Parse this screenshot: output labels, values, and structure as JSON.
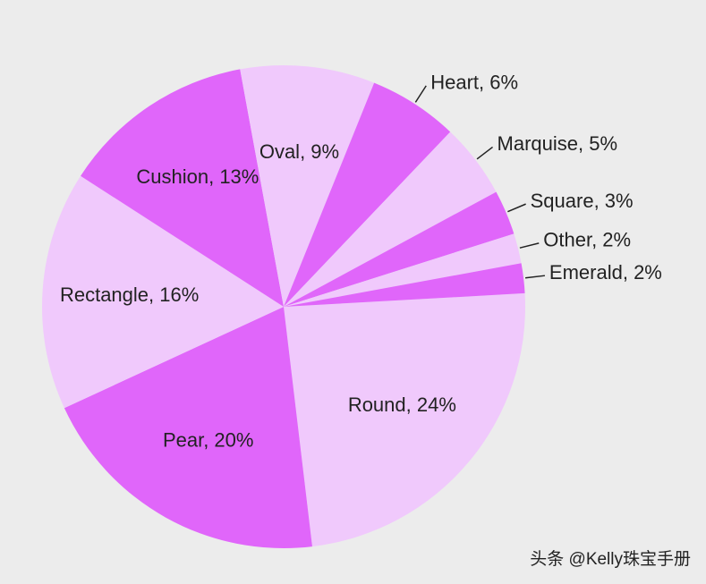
{
  "chart_data": {
    "type": "pie",
    "values": [
      24,
      20,
      16,
      13,
      9,
      6,
      5,
      3,
      2,
      2
    ],
    "value_labels": [
      "Round, 24%",
      "Pear, 20%",
      "Rectangle, 16%",
      "Cushion, 13%",
      "Oval, 9%",
      "Heart, 6%",
      "Marquise, 5%",
      "Square, 3%",
      "Other, 2%",
      "Emerald, 2%"
    ],
    "colors": [
      "#f0c9fc",
      "#e066fa",
      "#f0c9fc",
      "#e066fa",
      "#f0c9fc",
      "#e066fa",
      "#f0c9fc",
      "#e066fa",
      "#f0c9fc",
      "#e066fa"
    ]
  },
  "watermark": "头条 @Kelly珠宝手册"
}
